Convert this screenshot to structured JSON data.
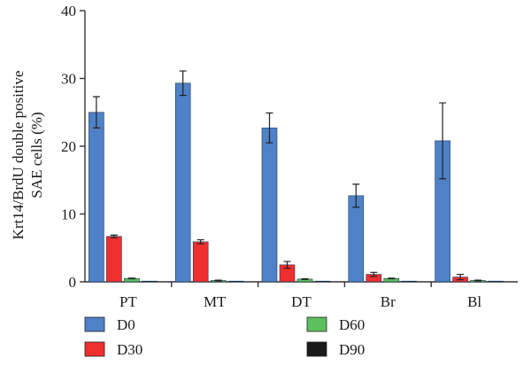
{
  "chart_data": {
    "type": "bar",
    "ylabel": [
      "Krt14/BrdU double positive",
      "SAE cells (%)"
    ],
    "ylim": [
      0,
      40
    ],
    "yticks": [
      0,
      10,
      20,
      30,
      40
    ],
    "categories": [
      "PT",
      "MT",
      "DT",
      "Br",
      "Bl"
    ],
    "series": [
      {
        "name": "D0",
        "color": "#4f81c7",
        "values": [
          25.0,
          29.3,
          22.7,
          12.7,
          20.8
        ],
        "errors": [
          2.3,
          1.8,
          2.2,
          1.7,
          5.6
        ]
      },
      {
        "name": "D30",
        "color": "#ef2e2e",
        "values": [
          6.7,
          5.9,
          2.5,
          1.1,
          0.7
        ],
        "errors": [
          0.2,
          0.3,
          0.5,
          0.3,
          0.4
        ]
      },
      {
        "name": "D60",
        "color": "#5cc05c",
        "values": [
          0.5,
          0.2,
          0.4,
          0.5,
          0.2
        ],
        "errors": [
          0.05,
          0.05,
          0.05,
          0.05,
          0.05
        ]
      },
      {
        "name": "D90",
        "color": "#1a1a1a",
        "values": [
          0.0,
          0.05,
          0.0,
          0.0,
          0.1
        ],
        "errors": [
          0,
          0,
          0,
          0,
          0
        ]
      }
    ],
    "legend_position": "bottom",
    "grid": false
  }
}
